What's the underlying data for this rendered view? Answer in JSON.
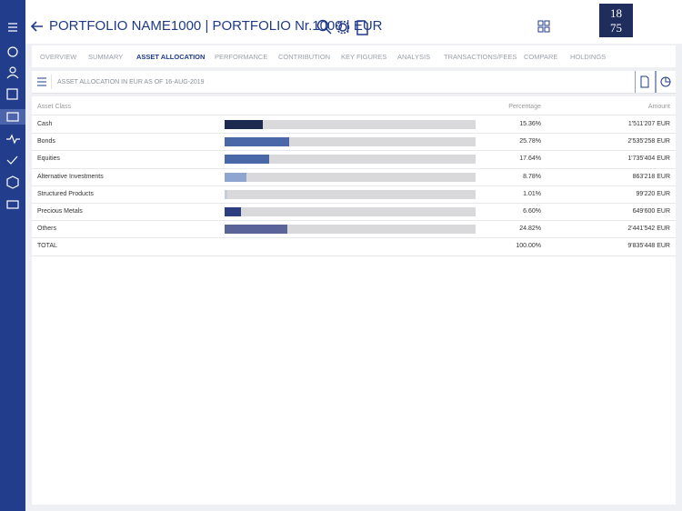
{
  "header": {
    "title": "PORTFOLIO NAME1000 | PORTFOLIO Nr.1000 | EUR",
    "logo": [
      "18",
      "75"
    ]
  },
  "tabs": [
    "OVERVIEW",
    "SUMMARY",
    "ASSET ALLOCATION",
    "PERFORMANCE",
    "CONTRIBUTION",
    "KEY FIGURES",
    "ANALYSIS",
    "TRANSACTIONS/FEES",
    "COMPARE",
    "HOLDINGS"
  ],
  "active_tab": 2,
  "toolbar": {
    "caption": "ASSET ALLOCATION IN EUR AS OF 16-AUG-2019"
  },
  "table": {
    "columns": [
      "Asset Class",
      "Percentage",
      "Amount"
    ],
    "rows": [
      {
        "asset_class": "Cash",
        "percentage": {
          "value": 15.36,
          "label": "15.36%"
        },
        "amount": "1'511'207 EUR",
        "color": "#1b2a4e"
      },
      {
        "asset_class": "Bonds",
        "percentage": {
          "value": 25.78,
          "label": "25.78%"
        },
        "amount": "2'535'258 EUR",
        "color": "#4a68a8"
      },
      {
        "asset_class": "Equities",
        "percentage": {
          "value": 17.64,
          "label": "17.64%"
        },
        "amount": "1'735'404 EUR",
        "color": "#4a68a8"
      },
      {
        "asset_class": "Alternative Investments",
        "percentage": {
          "value": 8.78,
          "label": "8.78%"
        },
        "amount": "863'218 EUR",
        "color": "#8ea5cf"
      },
      {
        "asset_class": "Structured Products",
        "percentage": {
          "value": 1.01,
          "label": "1.01%"
        },
        "amount": "99'220 EUR",
        "color": "#c4cde0"
      },
      {
        "asset_class": "Precious Metals",
        "percentage": {
          "value": 6.6,
          "label": "6.60%"
        },
        "amount": "649'600 EUR",
        "color": "#2c3d80"
      },
      {
        "asset_class": "Others",
        "percentage": {
          "value": 24.82,
          "label": "24.82%"
        },
        "amount": "2'441'542 EUR",
        "color": "#5a6498"
      }
    ],
    "total": {
      "asset_class": "TOTAL",
      "percentage": "100.00%",
      "amount": "9'835'448 EUR"
    }
  }
}
